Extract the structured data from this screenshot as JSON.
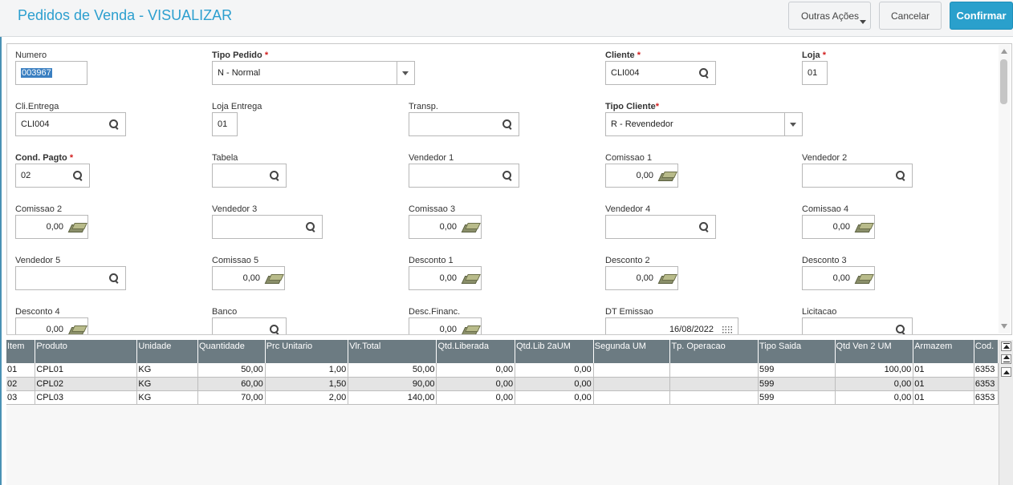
{
  "header": {
    "title": "Pedidos de Venda - VISUALIZAR",
    "buttons": {
      "outras": "Outras Ações",
      "cancelar": "Cancelar",
      "confirmar": "Confirmar"
    }
  },
  "form": {
    "numero": {
      "label": "Numero",
      "value": "003967"
    },
    "tipo_pedido": {
      "label": "Tipo Pedido",
      "value": "N - Normal"
    },
    "cliente": {
      "label": "Cliente",
      "value": "CLI004"
    },
    "loja": {
      "label": "Loja",
      "value": "01"
    },
    "cli_entrega": {
      "label": "Cli.Entrega",
      "value": "CLI004"
    },
    "loja_entrega": {
      "label": "Loja Entrega",
      "value": "01"
    },
    "transp": {
      "label": "Transp.",
      "value": ""
    },
    "tipo_cliente": {
      "label": "Tipo Cliente",
      "value": "R - Revendedor"
    },
    "cond_pagto": {
      "label": "Cond. Pagto",
      "value": "02"
    },
    "tabela": {
      "label": "Tabela",
      "value": ""
    },
    "vendedor1": {
      "label": "Vendedor 1",
      "value": ""
    },
    "comissao1": {
      "label": "Comissao 1",
      "value": "0,00"
    },
    "vendedor2": {
      "label": "Vendedor 2",
      "value": ""
    },
    "comissao2": {
      "label": "Comissao 2",
      "value": "0,00"
    },
    "vendedor3": {
      "label": "Vendedor 3",
      "value": ""
    },
    "comissao3": {
      "label": "Comissao 3",
      "value": "0,00"
    },
    "vendedor4": {
      "label": "Vendedor 4",
      "value": ""
    },
    "comissao4": {
      "label": "Comissao 4",
      "value": "0,00"
    },
    "vendedor5": {
      "label": "Vendedor 5",
      "value": ""
    },
    "comissao5": {
      "label": "Comissao 5",
      "value": "0,00"
    },
    "desconto1": {
      "label": "Desconto 1",
      "value": "0,00"
    },
    "desconto2": {
      "label": "Desconto 2",
      "value": "0,00"
    },
    "desconto3": {
      "label": "Desconto 3",
      "value": "0,00"
    },
    "desconto4": {
      "label": "Desconto 4",
      "value": "0,00"
    },
    "banco": {
      "label": "Banco",
      "value": ""
    },
    "desc_financ": {
      "label": "Desc.Financ.",
      "value": "0,00"
    },
    "dt_emissao": {
      "label": "DT Emissao",
      "value": "16/08/2022"
    },
    "licitacao": {
      "label": "Licitacao",
      "value": ""
    },
    "required_mark": "*"
  },
  "grid": {
    "columns": [
      "Item",
      "Produto",
      "Unidade",
      "Quantidade",
      "Prc Unitario",
      "Vlr.Total",
      "Qtd.Liberada",
      "Qtd.Lib 2aUM",
      "Segunda UM",
      "Tp. Operacao",
      "Tipo Saida",
      "Qtd Ven 2 UM",
      "Armazem",
      "Cod."
    ],
    "rows": [
      [
        "01",
        "CPL01",
        "KG",
        "50,00",
        "1,00",
        "50,00",
        "0,00",
        "0,00",
        "",
        "",
        "599",
        "100,00",
        "01",
        "6353"
      ],
      [
        "02",
        "CPL02",
        "KG",
        "60,00",
        "1,50",
        "90,00",
        "0,00",
        "0,00",
        "",
        "",
        "599",
        "0,00",
        "01",
        "6353"
      ],
      [
        "03",
        "CPL03",
        "KG",
        "70,00",
        "2,00",
        "140,00",
        "0,00",
        "0,00",
        "",
        "",
        "599",
        "0,00",
        "01",
        "6353"
      ]
    ]
  }
}
